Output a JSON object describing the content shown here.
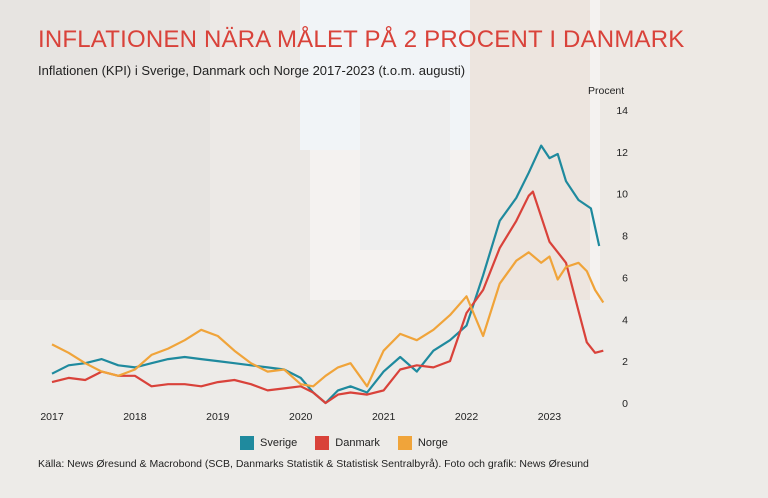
{
  "title": "INFLATIONEN NÄRA MÅLET PÅ 2 PROCENT I DANMARK",
  "subtitle": "Inflationen (KPI) i Sverige, Danmark och Norge 2017-2023 (t.o.m. augusti)",
  "source": "Källa: News Øresund & Macrobond (SCB, Danmarks Statistik & Statistisk Sentralbyrå). Foto och grafik: News Øresund",
  "colors": {
    "title": "#d9423a",
    "sverige": "#1f8a9e",
    "danmark": "#d9423a",
    "norge": "#f0a43a"
  },
  "chart_data": {
    "type": "line",
    "ylabel": "Procent",
    "ylim": [
      0,
      14
    ],
    "y_ticks": [
      "0",
      "2",
      "4",
      "6",
      "8",
      "10",
      "12",
      "14"
    ],
    "x_ticks": [
      "2017",
      "2018",
      "2019",
      "2020",
      "2021",
      "2022",
      "2023"
    ],
    "x_range": [
      2017.0,
      2023.67
    ],
    "grid": false,
    "legend_position": "bottom",
    "series": [
      {
        "name": "Sverige",
        "color": "#1f8a9e",
        "points": [
          [
            2017.0,
            1.4
          ],
          [
            2017.2,
            1.8
          ],
          [
            2017.4,
            1.9
          ],
          [
            2017.6,
            2.1
          ],
          [
            2017.8,
            1.8
          ],
          [
            2018.0,
            1.7
          ],
          [
            2018.2,
            1.9
          ],
          [
            2018.4,
            2.1
          ],
          [
            2018.6,
            2.2
          ],
          [
            2018.8,
            2.1
          ],
          [
            2019.0,
            2.0
          ],
          [
            2019.2,
            1.9
          ],
          [
            2019.4,
            1.8
          ],
          [
            2019.6,
            1.7
          ],
          [
            2019.8,
            1.6
          ],
          [
            2020.0,
            1.2
          ],
          [
            2020.15,
            0.5
          ],
          [
            2020.3,
            0.0
          ],
          [
            2020.45,
            0.6
          ],
          [
            2020.6,
            0.8
          ],
          [
            2020.8,
            0.5
          ],
          [
            2021.0,
            1.5
          ],
          [
            2021.2,
            2.2
          ],
          [
            2021.4,
            1.5
          ],
          [
            2021.6,
            2.5
          ],
          [
            2021.8,
            3.0
          ],
          [
            2022.0,
            3.7
          ],
          [
            2022.2,
            6.1
          ],
          [
            2022.4,
            8.7
          ],
          [
            2022.6,
            9.8
          ],
          [
            2022.75,
            11.0
          ],
          [
            2022.9,
            12.3
          ],
          [
            2023.0,
            11.7
          ],
          [
            2023.1,
            11.9
          ],
          [
            2023.2,
            10.6
          ],
          [
            2023.35,
            9.7
          ],
          [
            2023.5,
            9.3
          ],
          [
            2023.6,
            7.5
          ]
        ]
      },
      {
        "name": "Danmark",
        "color": "#d9423a",
        "points": [
          [
            2017.0,
            1.0
          ],
          [
            2017.2,
            1.2
          ],
          [
            2017.4,
            1.1
          ],
          [
            2017.6,
            1.5
          ],
          [
            2017.8,
            1.3
          ],
          [
            2018.0,
            1.3
          ],
          [
            2018.2,
            0.8
          ],
          [
            2018.4,
            0.9
          ],
          [
            2018.6,
            0.9
          ],
          [
            2018.8,
            0.8
          ],
          [
            2019.0,
            1.0
          ],
          [
            2019.2,
            1.1
          ],
          [
            2019.4,
            0.9
          ],
          [
            2019.6,
            0.6
          ],
          [
            2019.8,
            0.7
          ],
          [
            2020.0,
            0.8
          ],
          [
            2020.15,
            0.5
          ],
          [
            2020.3,
            0.0
          ],
          [
            2020.45,
            0.4
          ],
          [
            2020.6,
            0.5
          ],
          [
            2020.8,
            0.4
          ],
          [
            2021.0,
            0.6
          ],
          [
            2021.2,
            1.6
          ],
          [
            2021.4,
            1.8
          ],
          [
            2021.6,
            1.7
          ],
          [
            2021.8,
            2.0
          ],
          [
            2022.0,
            4.3
          ],
          [
            2022.2,
            5.4
          ],
          [
            2022.4,
            7.4
          ],
          [
            2022.6,
            8.7
          ],
          [
            2022.75,
            9.9
          ],
          [
            2022.8,
            10.1
          ],
          [
            2022.9,
            8.9
          ],
          [
            2023.0,
            7.7
          ],
          [
            2023.2,
            6.7
          ],
          [
            2023.35,
            4.4
          ],
          [
            2023.45,
            2.9
          ],
          [
            2023.55,
            2.4
          ],
          [
            2023.65,
            2.5
          ]
        ]
      },
      {
        "name": "Norge",
        "color": "#f0a43a",
        "points": [
          [
            2017.0,
            2.8
          ],
          [
            2017.2,
            2.4
          ],
          [
            2017.4,
            1.9
          ],
          [
            2017.6,
            1.5
          ],
          [
            2017.8,
            1.3
          ],
          [
            2018.0,
            1.6
          ],
          [
            2018.2,
            2.3
          ],
          [
            2018.4,
            2.6
          ],
          [
            2018.6,
            3.0
          ],
          [
            2018.8,
            3.5
          ],
          [
            2019.0,
            3.2
          ],
          [
            2019.2,
            2.5
          ],
          [
            2019.4,
            1.9
          ],
          [
            2019.6,
            1.5
          ],
          [
            2019.8,
            1.6
          ],
          [
            2020.0,
            0.9
          ],
          [
            2020.15,
            0.8
          ],
          [
            2020.3,
            1.3
          ],
          [
            2020.45,
            1.7
          ],
          [
            2020.6,
            1.9
          ],
          [
            2020.8,
            0.8
          ],
          [
            2021.0,
            2.5
          ],
          [
            2021.2,
            3.3
          ],
          [
            2021.4,
            3.0
          ],
          [
            2021.6,
            3.5
          ],
          [
            2021.8,
            4.2
          ],
          [
            2022.0,
            5.1
          ],
          [
            2022.2,
            3.2
          ],
          [
            2022.4,
            5.7
          ],
          [
            2022.6,
            6.8
          ],
          [
            2022.75,
            7.2
          ],
          [
            2022.9,
            6.7
          ],
          [
            2023.0,
            7.0
          ],
          [
            2023.1,
            5.9
          ],
          [
            2023.2,
            6.5
          ],
          [
            2023.35,
            6.7
          ],
          [
            2023.45,
            6.3
          ],
          [
            2023.55,
            5.4
          ],
          [
            2023.65,
            4.8
          ]
        ]
      }
    ]
  }
}
